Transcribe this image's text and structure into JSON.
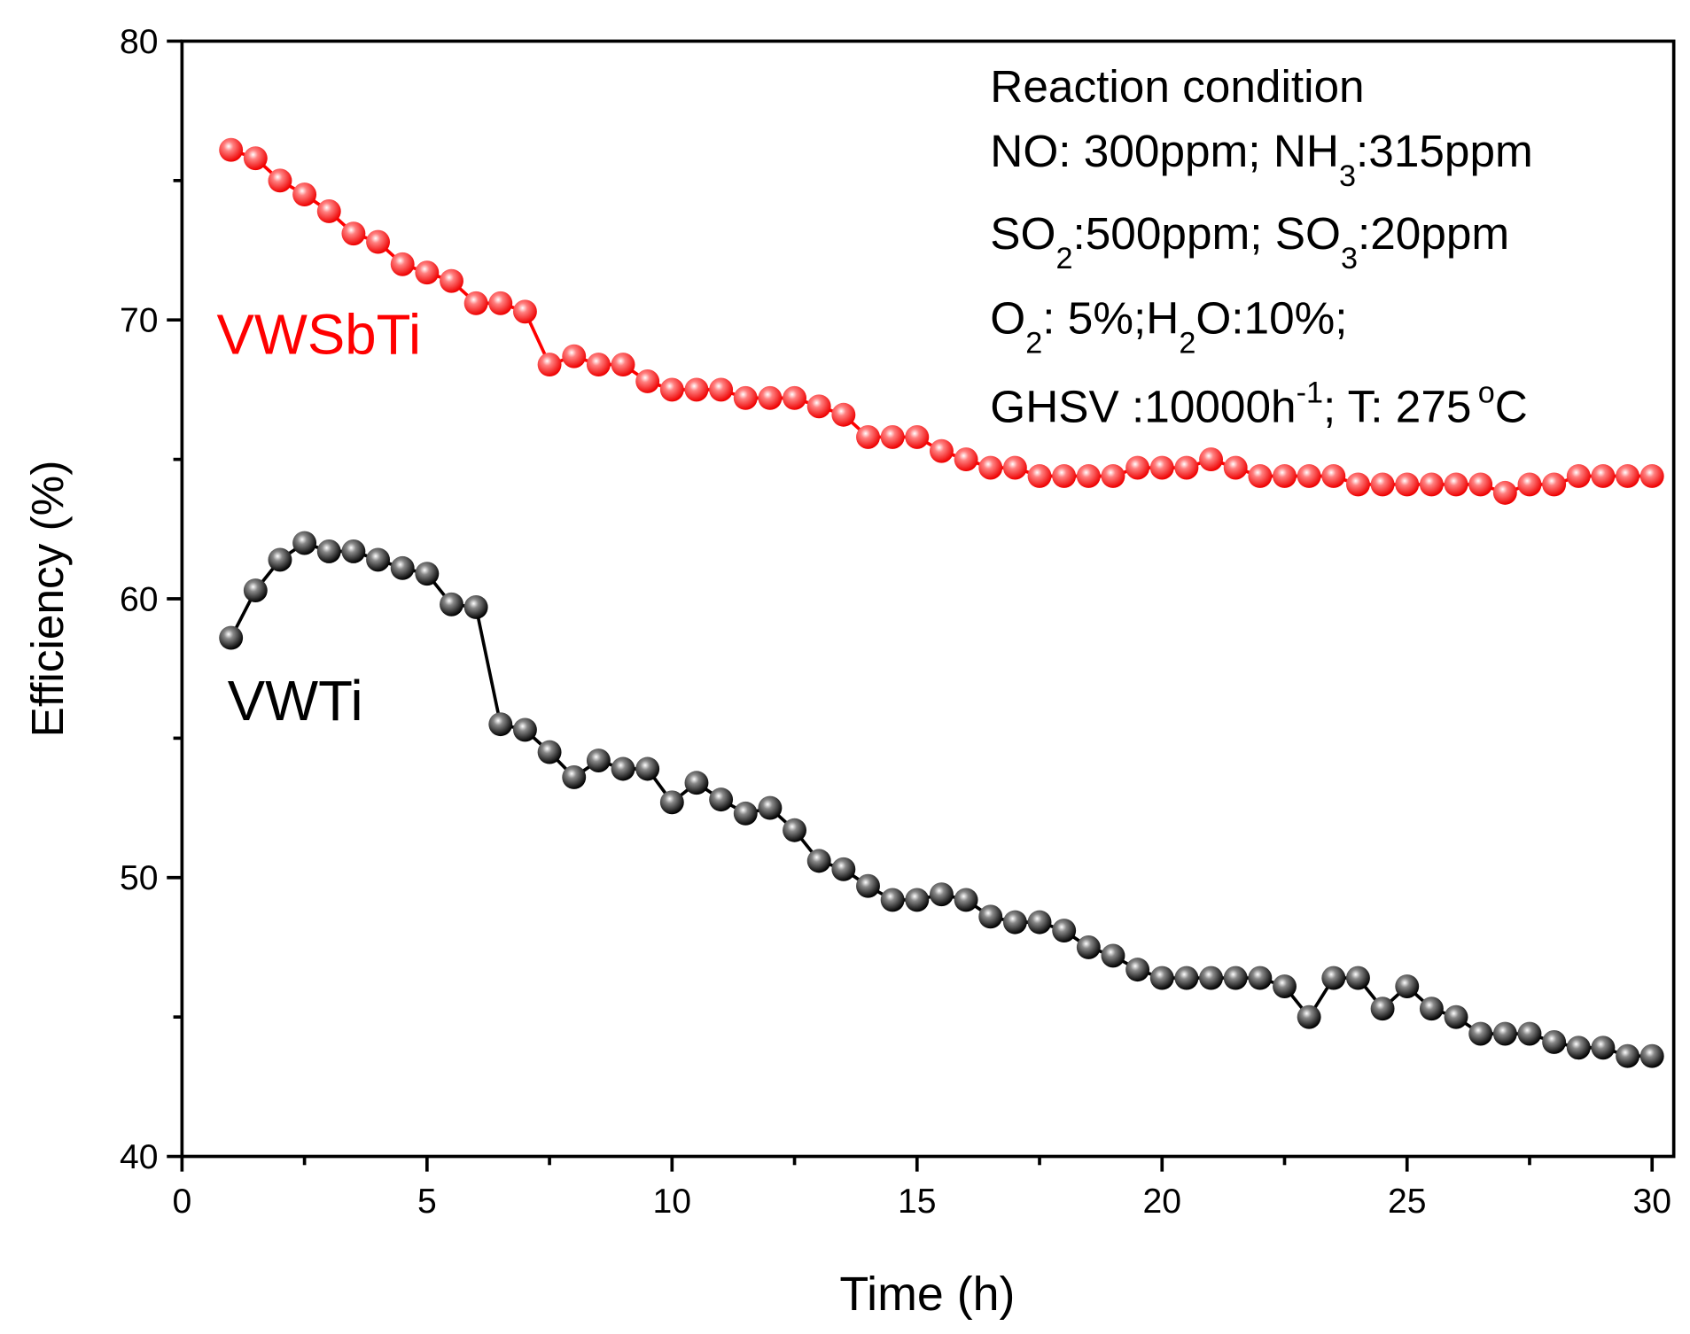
{
  "chart_data": {
    "type": "line",
    "title": "",
    "xlabel": "Time (h)",
    "ylabel": "Efficiency (%)",
    "xlim": [
      0,
      30
    ],
    "ylim": [
      40,
      80
    ],
    "xticks": [
      0,
      5,
      10,
      15,
      20,
      25,
      30
    ],
    "yticks": [
      40,
      50,
      60,
      70,
      80
    ],
    "grid": false,
    "x": [
      1,
      1.5,
      2,
      2.5,
      3,
      3.5,
      4,
      4.5,
      5,
      5.5,
      6,
      6.5,
      7,
      7.5,
      8,
      8.5,
      9,
      9.5,
      10,
      10.5,
      11,
      11.5,
      12,
      12.5,
      13,
      13.5,
      14,
      14.5,
      15,
      15.5,
      16,
      16.5,
      17,
      17.5,
      18,
      18.5,
      19,
      19.5,
      20,
      20.5,
      21,
      21.5,
      22,
      22.5,
      23,
      23.5,
      24,
      24.5,
      25,
      25.5,
      26,
      26.5,
      27,
      27.5,
      28,
      28.5,
      29,
      29.5,
      30
    ],
    "series": [
      {
        "name": "VWSbTi",
        "color": "#ff0000",
        "values": [
          76.1,
          75.8,
          75.0,
          74.5,
          73.9,
          73.1,
          72.8,
          72.0,
          71.7,
          71.4,
          70.6,
          70.6,
          70.3,
          68.4,
          68.7,
          68.4,
          68.4,
          67.8,
          67.5,
          67.5,
          67.5,
          67.2,
          67.2,
          67.2,
          66.9,
          66.6,
          65.8,
          65.8,
          65.8,
          65.3,
          65.0,
          64.7,
          64.7,
          64.4,
          64.4,
          64.4,
          64.4,
          64.7,
          64.7,
          64.7,
          65.0,
          64.7,
          64.4,
          64.4,
          64.4,
          64.4,
          64.1,
          64.1,
          64.1,
          64.1,
          64.1,
          64.1,
          63.8,
          64.1,
          64.1,
          64.4,
          64.4,
          64.4,
          64.4
        ]
      },
      {
        "name": "VWTi",
        "color": "#000000",
        "values": [
          58.6,
          60.3,
          61.4,
          62.0,
          61.7,
          61.7,
          61.4,
          61.1,
          60.9,
          59.8,
          59.7,
          55.5,
          55.3,
          54.5,
          53.6,
          54.2,
          53.9,
          53.9,
          52.7,
          53.4,
          52.8,
          52.3,
          52.5,
          51.7,
          50.6,
          50.3,
          49.7,
          49.2,
          49.2,
          49.4,
          49.2,
          48.6,
          48.4,
          48.4,
          48.1,
          47.5,
          47.2,
          46.7,
          46.4,
          46.4,
          46.4,
          46.4,
          46.4,
          46.1,
          45.0,
          46.4,
          46.4,
          45.3,
          46.1,
          45.3,
          45.0,
          44.4,
          44.4,
          44.4,
          44.1,
          43.9,
          43.9,
          43.6,
          43.6
        ]
      }
    ],
    "annotations": {
      "title": "Reaction condition",
      "line1": {
        "a": "NO: 300ppm; NH",
        "sub": "3",
        "b": ":315ppm"
      },
      "line2": {
        "a": "SO",
        "sub1": "2",
        "b": ":500ppm; SO",
        "sub2": "3",
        "c": ":20ppm"
      },
      "line3": {
        "a": "O",
        "sub1": "2",
        "b": ": 5%;H",
        "sub2": "2",
        "c": "O:10%;"
      },
      "line4": {
        "a": "GHSV :10000h",
        "sup": "-1",
        "b": "; T: 275",
        "sup2": "o",
        "c": "C"
      }
    },
    "legend": "inline-labels"
  }
}
